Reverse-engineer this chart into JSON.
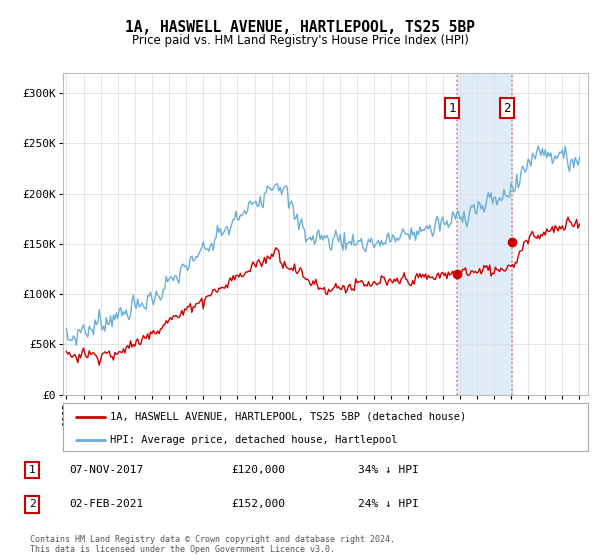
{
  "title_line1": "1A, HASWELL AVENUE, HARTLEPOOL, TS25 5BP",
  "title_line2": "Price paid vs. HM Land Registry's House Price Index (HPI)",
  "ylim": [
    0,
    320000
  ],
  "yticks": [
    0,
    50000,
    100000,
    150000,
    200000,
    250000,
    300000
  ],
  "ytick_labels": [
    "£0",
    "£50K",
    "£100K",
    "£150K",
    "£200K",
    "£250K",
    "£300K"
  ],
  "hpi_color": "#6baed6",
  "property_color": "#cc0000",
  "marker1_date_label": "07-NOV-2017",
  "marker1_price": 120000,
  "marker1_pct": "34% ↓ HPI",
  "marker2_date_label": "02-FEB-2021",
  "marker2_price": 152000,
  "marker2_pct": "24% ↓ HPI",
  "shade_color": "#dce9f5",
  "dashed_color": "#e08080",
  "legend_property": "1A, HASWELL AVENUE, HARTLEPOOL, TS25 5BP (detached house)",
  "legend_hpi": "HPI: Average price, detached house, Hartlepool",
  "footer": "Contains HM Land Registry data © Crown copyright and database right 2024.\nThis data is licensed under the Open Government Licence v3.0.",
  "sale1_year": 2017.85,
  "sale2_year": 2021.08,
  "sale1_value": 120000,
  "sale2_value": 152000
}
